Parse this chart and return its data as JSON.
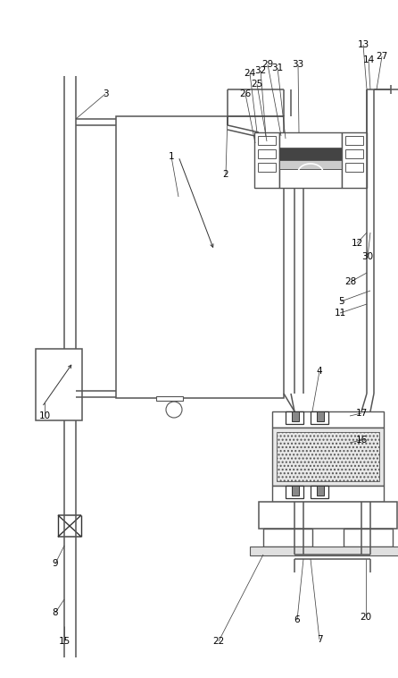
{
  "bg": "white",
  "lc": "#555555",
  "dc": "#333333",
  "labels": [
    [
      "1",
      192,
      175
    ],
    [
      "2",
      253,
      195
    ],
    [
      "3",
      118,
      105
    ],
    [
      "4",
      358,
      415
    ],
    [
      "5",
      382,
      337
    ],
    [
      "6",
      333,
      693
    ],
    [
      "7",
      358,
      715
    ],
    [
      "8",
      62,
      685
    ],
    [
      "9",
      62,
      630
    ],
    [
      "10",
      50,
      465
    ],
    [
      "11",
      381,
      350
    ],
    [
      "12",
      400,
      272
    ],
    [
      "13",
      407,
      50
    ],
    [
      "14",
      413,
      67
    ],
    [
      "15",
      72,
      717
    ],
    [
      "16",
      405,
      492
    ],
    [
      "17",
      405,
      462
    ],
    [
      "20",
      410,
      690
    ],
    [
      "22",
      245,
      717
    ],
    [
      "24",
      280,
      82
    ],
    [
      "25",
      288,
      94
    ],
    [
      "26",
      275,
      105
    ],
    [
      "27",
      428,
      63
    ],
    [
      "28",
      393,
      315
    ],
    [
      "29",
      300,
      72
    ],
    [
      "30",
      412,
      287
    ],
    [
      "31",
      311,
      76
    ],
    [
      "32",
      292,
      79
    ],
    [
      "33",
      334,
      72
    ]
  ]
}
